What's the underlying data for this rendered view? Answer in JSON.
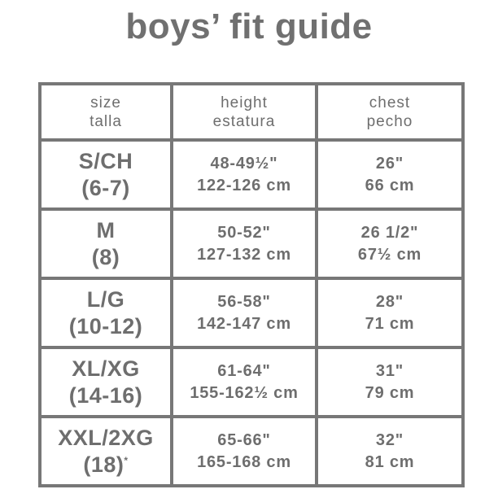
{
  "title": "boys’ fit guide",
  "headers": [
    {
      "en": "size",
      "es": "talla"
    },
    {
      "en": "height",
      "es": "estatura"
    },
    {
      "en": "chest",
      "es": "pecho"
    }
  ],
  "rows": [
    {
      "size": "S/CH",
      "range": "(6-7)",
      "note": "",
      "height_in": "48-49½\"",
      "height_cm": "122-126 cm",
      "chest_in": "26\"",
      "chest_cm": "66 cm"
    },
    {
      "size": "M",
      "range": "(8)",
      "note": "",
      "height_in": "50-52\"",
      "height_cm": "127-132 cm",
      "chest_in": "26 1/2\"",
      "chest_cm": "67½ cm"
    },
    {
      "size": "L/G",
      "range": "(10-12)",
      "note": "",
      "height_in": "56-58\"",
      "height_cm": "142-147 cm",
      "chest_in": "28\"",
      "chest_cm": "71 cm"
    },
    {
      "size": "XL/XG",
      "range": "(14-16)",
      "note": "",
      "height_in": "61-64\"",
      "height_cm": "155-162½ cm",
      "chest_in": "31\"",
      "chest_cm": "79 cm"
    },
    {
      "size": "XXL/2XG",
      "range": "(18)",
      "note": "*",
      "height_in": "65-66\"",
      "height_cm": "165-168 cm",
      "chest_in": "32\"",
      "chest_cm": "81 cm"
    }
  ],
  "colors": {
    "text": "#707070",
    "border": "#777777"
  }
}
